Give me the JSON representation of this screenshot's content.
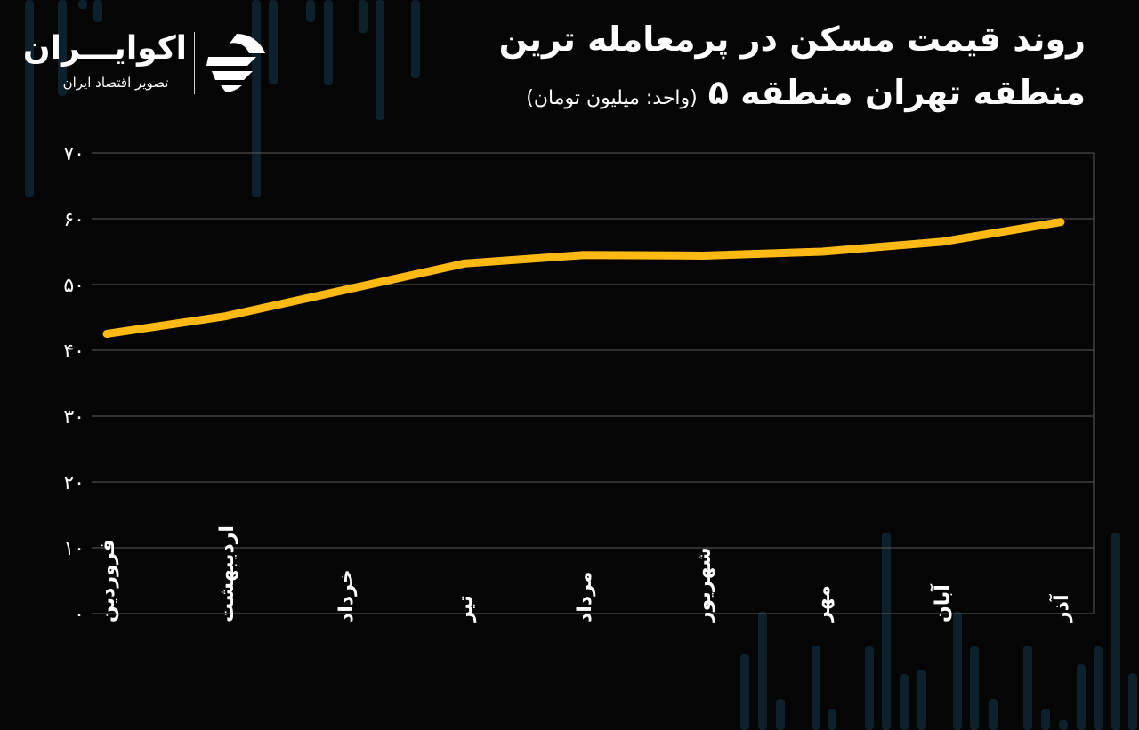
{
  "header": {
    "title_line1": "روند قیمت مسکن در پرمعامله ترین",
    "title_line2": "منطقه تهران منطقه ۵",
    "unit_note": "(واحد: میلیون تومان)"
  },
  "brand": {
    "name": "اکوایـــران",
    "tagline": "تصویر اقتصاد ایران",
    "logo_icon": "ekoiran-logo-icon"
  },
  "colors": {
    "background": "#050505",
    "line": "#FFB915",
    "grid": "#5a5a5a",
    "text": "#ffffff",
    "bg_bars": "#0d2530"
  },
  "chart_data": {
    "type": "line",
    "categories": [
      "فروردین",
      "اردیبهشت",
      "خرداد",
      "تیر",
      "مرداد",
      "شهریور",
      "مهر",
      "آبان",
      "آذر"
    ],
    "series": [
      {
        "values": [
          42.5,
          45.2,
          49.2,
          53.2,
          54.5,
          54.4,
          55.0,
          56.5,
          59.5
        ]
      }
    ],
    "yticks": [
      0,
      10,
      20,
      30,
      40,
      50,
      60,
      70
    ],
    "ytick_labels": [
      "۰",
      "۱۰",
      "۲۰",
      "۳۰",
      "۴۰",
      "۵۰",
      "۶۰",
      "۷۰"
    ],
    "ylim": [
      0,
      70
    ],
    "grid": true,
    "legend": "none"
  }
}
